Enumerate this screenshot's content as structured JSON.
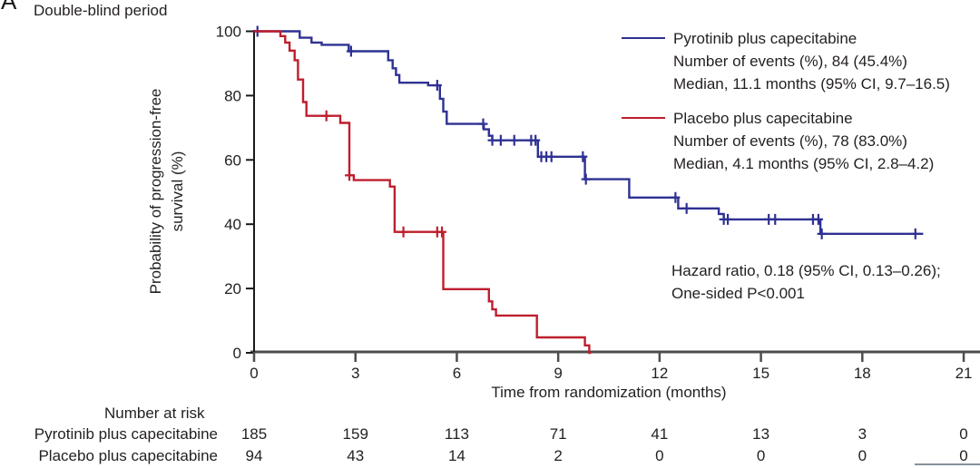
{
  "panel": {
    "label": "A",
    "title": "Double-blind period"
  },
  "axes": {
    "xlabel": "Time from randomization (months)",
    "ylabel_line1": "Probability of progression-free",
    "ylabel_line2": "survival (%)"
  },
  "legend": {
    "groups": [
      {
        "name": "Pyrotinib plus capecitabine",
        "color": "#2e3192",
        "lines": [
          "Pyrotinib plus capecitabine",
          "Number of events (%), 84 (45.4%)",
          "Median, 11.1 months (95% CI, 9.7–16.5)"
        ]
      },
      {
        "name": "Placebo plus capecitabine",
        "color": "#be1e2d",
        "lines": [
          "Placebo plus capecitabine",
          "Number of events (%), 78 (83.0%)",
          "Median, 4.1 months (95% CI, 2.8–4.2)"
        ]
      }
    ]
  },
  "annotation": {
    "line1": "Hazard ratio, 0.18 (95% CI, 0.13–0.26);",
    "line2": "One-sided P<0.001"
  },
  "chart_data": {
    "type": "line",
    "subtype": "kaplan-meier-step",
    "title": "Double-blind period",
    "xlabel": "Time from randomization (months)",
    "ylabel": "Probability of progression-free survival (%)",
    "xlim": [
      0,
      21
    ],
    "xticks": [
      0,
      3,
      6,
      9,
      12,
      15,
      18,
      21
    ],
    "ylim": [
      0,
      100
    ],
    "yticks": [
      0,
      20,
      40,
      60,
      80,
      100
    ],
    "grid": false,
    "legend_position": "upper right",
    "series": [
      {
        "name": "Pyrotinib plus capecitabine",
        "color": "#2e3192",
        "events_text": "84 (45.4%)",
        "median_text": "11.1 months (95% CI, 9.7–16.5)",
        "steps": [
          [
            0,
            100
          ],
          [
            1.35,
            98
          ],
          [
            1.7,
            96.5
          ],
          [
            2.0,
            95.8
          ],
          [
            2.8,
            93.8
          ],
          [
            3.97,
            91
          ],
          [
            4.1,
            88.5
          ],
          [
            4.2,
            86.4
          ],
          [
            4.3,
            84
          ],
          [
            5.15,
            83.2
          ],
          [
            5.5,
            79
          ],
          [
            5.6,
            75
          ],
          [
            5.7,
            71.2
          ],
          [
            6.8,
            69.5
          ],
          [
            6.95,
            67.5
          ],
          [
            7.05,
            66.1
          ],
          [
            8.4,
            61
          ],
          [
            9.79,
            54
          ],
          [
            11.1,
            48.3
          ],
          [
            12.55,
            44.9
          ],
          [
            13.75,
            43.2
          ],
          [
            13.9,
            41.5
          ],
          [
            16.76,
            37
          ],
          [
            19.8,
            37
          ]
        ],
        "censors": [
          [
            0.1,
            100
          ],
          [
            2.87,
            93.8
          ],
          [
            5.42,
            83.2
          ],
          [
            6.78,
            71.2
          ],
          [
            7.05,
            66.1
          ],
          [
            7.3,
            66.1
          ],
          [
            7.7,
            66.1
          ],
          [
            8.2,
            66.1
          ],
          [
            8.33,
            66.1
          ],
          [
            8.5,
            61
          ],
          [
            8.65,
            61
          ],
          [
            8.8,
            61
          ],
          [
            9.73,
            61
          ],
          [
            9.82,
            54
          ],
          [
            12.47,
            48.3
          ],
          [
            12.8,
            44.9
          ],
          [
            13.9,
            41.5
          ],
          [
            14.02,
            41.5
          ],
          [
            15.23,
            41.5
          ],
          [
            15.42,
            41.5
          ],
          [
            16.54,
            41.5
          ],
          [
            16.7,
            41.5
          ],
          [
            16.8,
            37
          ],
          [
            19.57,
            37
          ]
        ]
      },
      {
        "name": "Placebo plus capecitabine",
        "color": "#be1e2d",
        "events_text": "78 (83.0%)",
        "median_text": "4.1 months (95% CI, 2.8–4.2)",
        "steps": [
          [
            0,
            100
          ],
          [
            0.78,
            98.5
          ],
          [
            0.92,
            96.5
          ],
          [
            1.05,
            94
          ],
          [
            1.2,
            91
          ],
          [
            1.3,
            85
          ],
          [
            1.45,
            78
          ],
          [
            1.55,
            73.7
          ],
          [
            2.55,
            71.5
          ],
          [
            2.82,
            55.2
          ],
          [
            2.95,
            53.7
          ],
          [
            4.02,
            51.7
          ],
          [
            4.16,
            37.6
          ],
          [
            5.6,
            19.8
          ],
          [
            6.95,
            16
          ],
          [
            7.05,
            13.5
          ],
          [
            7.16,
            11.6
          ],
          [
            8.37,
            4.8
          ],
          [
            9.79,
            2.3
          ],
          [
            9.92,
            0
          ],
          [
            9.97,
            0
          ]
        ],
        "censors": [
          [
            2.14,
            73.7
          ],
          [
            2.82,
            55.2
          ],
          [
            4.42,
            37.6
          ],
          [
            5.42,
            37.6
          ],
          [
            5.56,
            37.6
          ]
        ]
      }
    ],
    "number_at_risk": {
      "title": "Number at risk",
      "times": [
        0,
        3,
        6,
        9,
        12,
        15,
        18,
        21
      ],
      "rows": [
        {
          "label": "Pyrotinib plus capecitabine",
          "counts": [
            185,
            159,
            113,
            71,
            41,
            13,
            3,
            0
          ]
        },
        {
          "label": "Placebo plus capecitabine",
          "counts": [
            94,
            43,
            14,
            2,
            0,
            0,
            0,
            0
          ]
        }
      ]
    }
  },
  "colors": {
    "pyrotinib_line": "#2e3192",
    "placebo_line": "#be1e2d",
    "text": "#231f20",
    "x_axis": "#4d4d4d",
    "y_axis": "#1a1a1a"
  }
}
